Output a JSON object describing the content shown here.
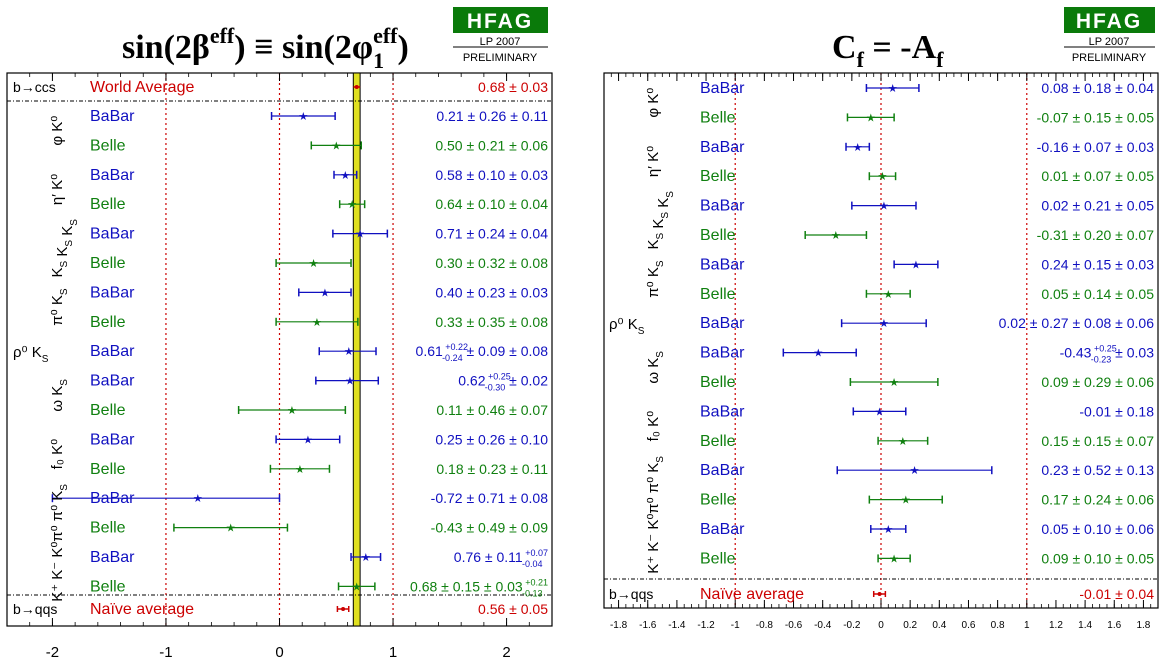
{
  "colors": {
    "babar": "#1010c0",
    "belle": "#108010",
    "average": "#cc0000",
    "band": "#e0e020",
    "frame": "#000000"
  },
  "hfag": {
    "logo": "HFAG",
    "edition": "LP 2007",
    "status": "PRELIMINARY"
  },
  "chart_data": [
    {
      "type": "scatter",
      "title_parts": {
        "lhs_main": "sin(2β",
        "lhs_sup": "eff",
        "eq": ") ≡ sin(2φ",
        "rhs_sub": "1",
        "rhs_sup": "eff",
        "close": ")"
      },
      "xlim": [
        -2.4,
        2.4
      ],
      "ticks": [
        -2,
        -1,
        0,
        1,
        2
      ],
      "tick_labels": [
        "-2",
        "-1",
        "0",
        "1",
        "2"
      ],
      "vlines": [
        -1,
        0,
        1
      ],
      "band": {
        "center": 0.68,
        "half_width": 0.03
      },
      "world_average": {
        "section": "b→ccs",
        "label": "World Average",
        "value": 0.68,
        "err": 0.03,
        "text": "0.68 ± 0.03"
      },
      "naive_average": {
        "section": "b→qqs",
        "label": "Naïve average",
        "value": 0.56,
        "err": 0.05,
        "text": "0.56 ± 0.05"
      },
      "modes": [
        {
          "name": "φ K⁰",
          "rows": [
            0,
            1
          ]
        },
        {
          "name": "η′ K⁰",
          "rows": [
            2,
            3
          ]
        },
        {
          "name": "K_S K_S K_S",
          "rows": [
            4,
            5
          ]
        },
        {
          "name": "π⁰ K_S",
          "rows": [
            6,
            7
          ]
        },
        {
          "name": "ρ⁰ K_S",
          "rows": [
            8,
            8
          ]
        },
        {
          "name": "ω K_S",
          "rows": [
            9,
            10
          ]
        },
        {
          "name": "f₀ K⁰",
          "rows": [
            11,
            12
          ]
        },
        {
          "name": "π⁰ π⁰ K_S",
          "rows": [
            13,
            14
          ]
        },
        {
          "name": "K⁺ K⁻ K⁰",
          "rows": [
            15,
            16
          ]
        }
      ],
      "rows": [
        {
          "exp": "BaBar",
          "value": 0.21,
          "err_low": 0.28,
          "err_high": 0.28,
          "text": "0.21 ± 0.26 ± 0.11"
        },
        {
          "exp": "Belle",
          "value": 0.5,
          "err_low": 0.22,
          "err_high": 0.22,
          "text": "0.50 ± 0.21 ± 0.06"
        },
        {
          "exp": "BaBar",
          "value": 0.58,
          "err_low": 0.1,
          "err_high": 0.1,
          "text": "0.58 ± 0.10 ± 0.03"
        },
        {
          "exp": "Belle",
          "value": 0.64,
          "err_low": 0.11,
          "err_high": 0.11,
          "text": "0.64 ± 0.10 ± 0.04"
        },
        {
          "exp": "BaBar",
          "value": 0.71,
          "err_low": 0.24,
          "err_high": 0.24,
          "text": "0.71 ± 0.24 ± 0.04"
        },
        {
          "exp": "Belle",
          "value": 0.3,
          "err_low": 0.33,
          "err_high": 0.33,
          "text": "0.30 ± 0.32 ± 0.08"
        },
        {
          "exp": "BaBar",
          "value": 0.4,
          "err_low": 0.23,
          "err_high": 0.23,
          "text": "0.40 ± 0.23 ± 0.03"
        },
        {
          "exp": "Belle",
          "value": 0.33,
          "err_low": 0.36,
          "err_high": 0.36,
          "text": "0.33 ± 0.35 ± 0.08"
        },
        {
          "exp": "BaBar",
          "value": 0.61,
          "err_low": 0.26,
          "err_high": 0.24,
          "text": "0.61",
          "sup": "+0.22",
          "sub": "-0.24",
          "tail": " ± 0.09 ± 0.08"
        },
        {
          "exp": "BaBar",
          "value": 0.62,
          "err_low": 0.3,
          "err_high": 0.25,
          "text": "0.62",
          "sup": "+0.25",
          "sub": "-0.30",
          "tail": " ± 0.02"
        },
        {
          "exp": "Belle",
          "value": 0.11,
          "err_low": 0.47,
          "err_high": 0.47,
          "text": "0.11 ± 0.46 ± 0.07"
        },
        {
          "exp": "BaBar",
          "value": 0.25,
          "err_low": 0.28,
          "err_high": 0.28,
          "text": "0.25 ± 0.26 ± 0.10"
        },
        {
          "exp": "Belle",
          "value": 0.18,
          "err_low": 0.26,
          "err_high": 0.26,
          "text": "0.18 ± 0.23 ± 0.11"
        },
        {
          "exp": "BaBar",
          "value": -0.72,
          "err_low": 1.28,
          "err_high": 0.72,
          "text": "-0.72 ± 0.71 ± 0.08"
        },
        {
          "exp": "Belle",
          "value": -0.43,
          "err_low": 0.5,
          "err_high": 0.5,
          "text": "-0.43 ± 0.49 ± 0.09"
        },
        {
          "exp": "BaBar",
          "value": 0.76,
          "err_low": 0.13,
          "err_high": 0.13,
          "text": "0.76 ± 0.11",
          "sup": "+0.07",
          "sub": "-0.04"
        },
        {
          "exp": "Belle",
          "value": 0.68,
          "err_low": 0.16,
          "err_high": 0.16,
          "text": "0.68 ± 0.15 ± 0.03",
          "sup": "+0.21",
          "sub": "-0.13"
        }
      ]
    },
    {
      "type": "scatter",
      "title_parts": {
        "lhs": "C",
        "lhs_sub": "f",
        "mid": " = -A",
        "rhs_sub": "f"
      },
      "xlim": [
        -1.9,
        1.9
      ],
      "ticks": [
        -1.8,
        -1.6,
        -1.4,
        -1.2,
        -1,
        -0.8,
        -0.6,
        -0.4,
        -0.2,
        0,
        0.2,
        0.4,
        0.6,
        0.8,
        1,
        1.2,
        1.4,
        1.6,
        1.8
      ],
      "tick_labels": [
        "-1.8",
        "-1.6",
        "-1.4",
        "-1.2",
        "-1",
        "-0.8",
        "-0.6",
        "-0.4",
        "-0.2",
        "0",
        "0.2",
        "0.4",
        "0.6",
        "0.8",
        "1",
        "1.2",
        "1.4",
        "1.6",
        "1.8"
      ],
      "vlines": [
        -1,
        0,
        1
      ],
      "naive_average": {
        "section": "b→qqs",
        "label": "Naïve average",
        "value": -0.01,
        "err": 0.04,
        "text": "-0.01 ± 0.04"
      },
      "modes": [
        {
          "name": "φ K⁰",
          "rows": [
            0,
            1
          ]
        },
        {
          "name": "η′ K⁰",
          "rows": [
            2,
            3
          ]
        },
        {
          "name": "K_S K_S K_S",
          "rows": [
            4,
            5
          ]
        },
        {
          "name": "π⁰ K_S",
          "rows": [
            6,
            7
          ]
        },
        {
          "name": "ρ⁰ K_S",
          "rows": [
            8,
            8
          ]
        },
        {
          "name": "ω K_S",
          "rows": [
            9,
            10
          ]
        },
        {
          "name": "f₀ K⁰",
          "rows": [
            11,
            12
          ]
        },
        {
          "name": "π⁰ π⁰ K_S",
          "rows": [
            13,
            14
          ]
        },
        {
          "name": "K⁺ K⁻ K⁰",
          "rows": [
            15,
            16
          ]
        }
      ],
      "rows": [
        {
          "exp": "BaBar",
          "value": 0.08,
          "err_low": 0.18,
          "err_high": 0.18,
          "text": "0.08 ± 0.18 ± 0.04"
        },
        {
          "exp": "Belle",
          "value": -0.07,
          "err_low": 0.16,
          "err_high": 0.16,
          "text": "-0.07 ± 0.15 ± 0.05"
        },
        {
          "exp": "BaBar",
          "value": -0.16,
          "err_low": 0.08,
          "err_high": 0.08,
          "text": "-0.16 ± 0.07 ± 0.03"
        },
        {
          "exp": "Belle",
          "value": 0.01,
          "err_low": 0.09,
          "err_high": 0.09,
          "text": "0.01 ± 0.07 ± 0.05"
        },
        {
          "exp": "BaBar",
          "value": 0.02,
          "err_low": 0.22,
          "err_high": 0.22,
          "text": "0.02 ± 0.21 ± 0.05"
        },
        {
          "exp": "Belle",
          "value": -0.31,
          "err_low": 0.21,
          "err_high": 0.21,
          "text": "-0.31 ± 0.20 ± 0.07"
        },
        {
          "exp": "BaBar",
          "value": 0.24,
          "err_low": 0.15,
          "err_high": 0.15,
          "text": "0.24 ± 0.15 ± 0.03"
        },
        {
          "exp": "Belle",
          "value": 0.05,
          "err_low": 0.15,
          "err_high": 0.15,
          "text": "0.05 ± 0.14 ± 0.05"
        },
        {
          "exp": "BaBar",
          "value": 0.02,
          "err_low": 0.29,
          "err_high": 0.29,
          "text": "0.02 ± 0.27 ± 0.08 ± 0.06"
        },
        {
          "exp": "BaBar",
          "value": -0.43,
          "err_low": 0.24,
          "err_high": 0.26,
          "text": "-0.43",
          "sup": "+0.25",
          "sub": "-0.23",
          "tail": " ± 0.03"
        },
        {
          "exp": "Belle",
          "value": 0.09,
          "err_low": 0.3,
          "err_high": 0.3,
          "text": "0.09 ± 0.29 ± 0.06"
        },
        {
          "exp": "BaBar",
          "value": -0.01,
          "err_low": 0.18,
          "err_high": 0.18,
          "text": "-0.01 ± 0.18"
        },
        {
          "exp": "Belle",
          "value": 0.15,
          "err_low": 0.17,
          "err_high": 0.17,
          "text": "0.15 ± 0.15 ± 0.07"
        },
        {
          "exp": "BaBar",
          "value": 0.23,
          "err_low": 0.53,
          "err_high": 0.53,
          "text": "0.23 ± 0.52 ± 0.13"
        },
        {
          "exp": "Belle",
          "value": 0.17,
          "err_low": 0.25,
          "err_high": 0.25,
          "text": "0.17 ± 0.24 ± 0.06"
        },
        {
          "exp": "BaBar",
          "value": 0.05,
          "err_low": 0.12,
          "err_high": 0.12,
          "text": "0.05 ± 0.10 ± 0.06"
        },
        {
          "exp": "Belle",
          "value": 0.09,
          "err_low": 0.11,
          "err_high": 0.11,
          "text": "0.09 ± 0.10 ± 0.05"
        }
      ]
    }
  ]
}
